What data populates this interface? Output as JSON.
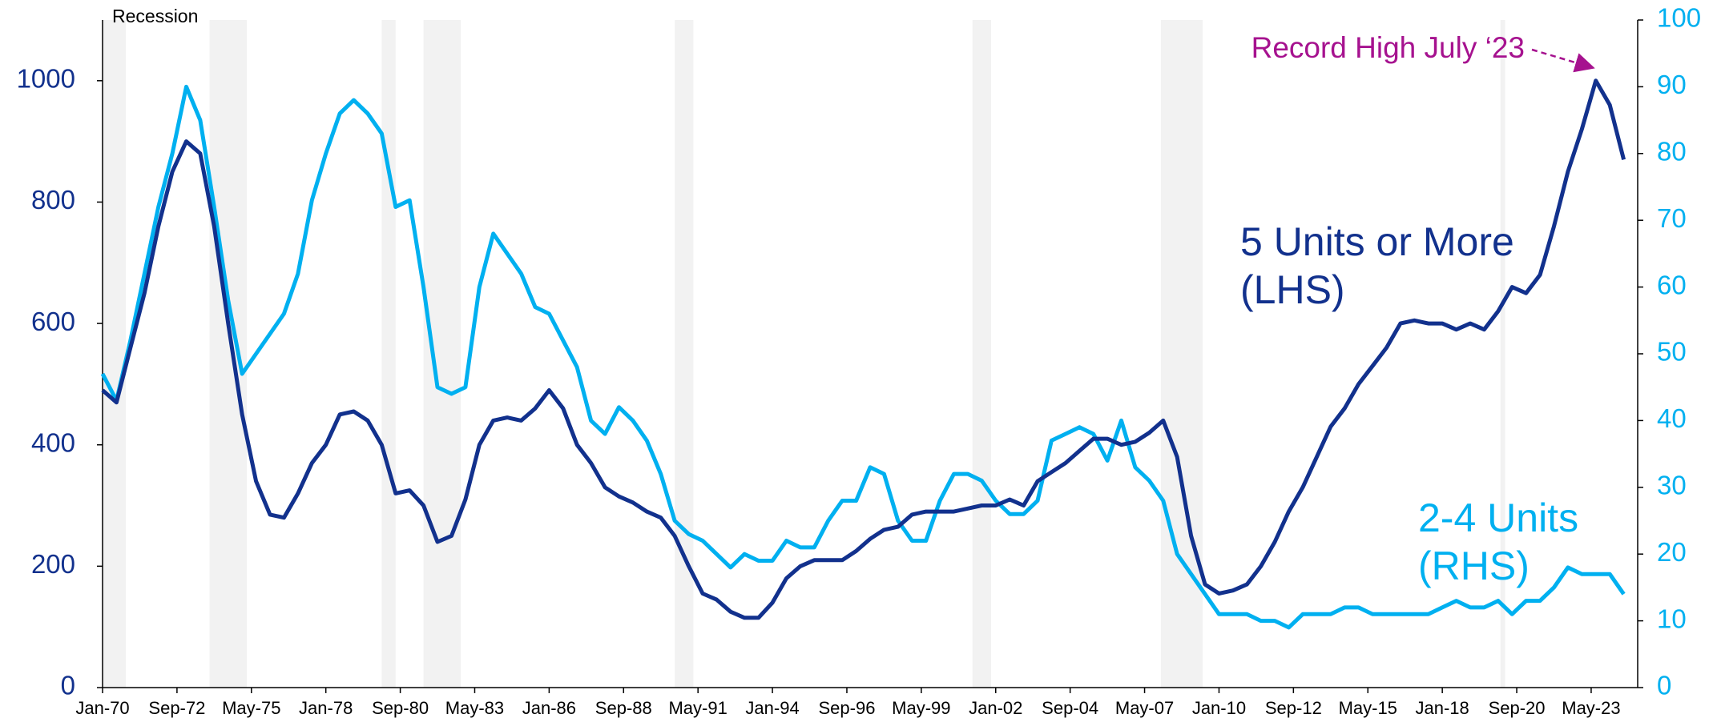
{
  "chart_data": {
    "type": "line",
    "x": [
      "Jan-70",
      "Jul-70",
      "Jan-71",
      "Jul-71",
      "Jan-72",
      "Jul-72",
      "Jan-73",
      "Jul-73",
      "Jan-74",
      "Jul-74",
      "Jan-75",
      "Jul-75",
      "Jan-76",
      "Jul-76",
      "Jan-77",
      "Jul-77",
      "Jan-78",
      "Jul-78",
      "Jan-79",
      "Jul-79",
      "Jan-80",
      "Jul-80",
      "Jan-81",
      "Jul-81",
      "Jan-82",
      "Jul-82",
      "Jan-83",
      "Jul-83",
      "Jan-84",
      "Jul-84",
      "Jan-85",
      "Jul-85",
      "Jan-86",
      "Jul-86",
      "Jan-87",
      "Jul-87",
      "Jan-88",
      "Jul-88",
      "Jan-89",
      "Jul-89",
      "Jan-90",
      "Jul-90",
      "Jan-91",
      "Jul-91",
      "Jan-92",
      "Jul-92",
      "Jan-93",
      "Jul-93",
      "Jan-94",
      "Jul-94",
      "Jan-95",
      "Jul-95",
      "Jan-96",
      "Jul-96",
      "Jan-97",
      "Jul-97",
      "Jan-98",
      "Jul-98",
      "Jan-99",
      "Jul-99",
      "Jan-00",
      "Jul-00",
      "Jan-01",
      "Jul-01",
      "Jan-02",
      "Jul-02",
      "Jan-03",
      "Jul-03",
      "Jan-04",
      "Jul-04",
      "Jan-05",
      "Jul-05",
      "Jan-06",
      "Jul-06",
      "Jan-07",
      "Jul-07",
      "Jan-08",
      "Jul-08",
      "Jan-09",
      "Jul-09",
      "Jan-10",
      "Jul-10",
      "Jan-11",
      "Jul-11",
      "Jan-12",
      "Jul-12",
      "Jan-13",
      "Jul-13",
      "Jan-14",
      "Jul-14",
      "Jan-15",
      "Jul-15",
      "Jan-16",
      "Jul-16",
      "Jan-17",
      "Jul-17",
      "Jan-18",
      "Jul-18",
      "Jan-19",
      "Jul-19",
      "Jan-20",
      "Jul-20",
      "Jan-21",
      "Jul-21",
      "Jan-22",
      "Jul-22",
      "Jan-23",
      "Jul-23",
      "Jan-24",
      "Jul-24"
    ],
    "series": [
      {
        "name": "5 Units or More (LHS)",
        "color": "#12318d",
        "axis": "y",
        "values": [
          490,
          470,
          560,
          650,
          760,
          850,
          900,
          880,
          760,
          600,
          450,
          340,
          285,
          280,
          320,
          370,
          400,
          450,
          455,
          440,
          400,
          320,
          325,
          300,
          240,
          250,
          310,
          400,
          440,
          445,
          440,
          460,
          490,
          460,
          400,
          370,
          330,
          315,
          305,
          290,
          280,
          250,
          200,
          155,
          145,
          125,
          115,
          115,
          140,
          180,
          200,
          210,
          210,
          210,
          225,
          245,
          260,
          265,
          285,
          290,
          290,
          290,
          295,
          300,
          300,
          310,
          300,
          340,
          355,
          370,
          390,
          410,
          410,
          400,
          405,
          420,
          440,
          380,
          250,
          170,
          155,
          160,
          170,
          200,
          240,
          290,
          330,
          380,
          430,
          460,
          500,
          530,
          560,
          600,
          605,
          600,
          600,
          590,
          600,
          590,
          620,
          660,
          650,
          680,
          760,
          850,
          920,
          1000,
          960,
          870
        ]
      },
      {
        "name": "2-4 Units (RHS)",
        "color": "#00b0f0",
        "axis": "y2",
        "values": [
          47,
          43,
          52,
          62,
          72,
          80,
          90,
          85,
          72,
          58,
          47,
          50,
          53,
          56,
          62,
          73,
          80,
          86,
          88,
          86,
          83,
          72,
          73,
          60,
          45,
          44,
          45,
          60,
          68,
          65,
          62,
          57,
          56,
          52,
          48,
          40,
          38,
          42,
          40,
          37,
          32,
          25,
          23,
          22,
          20,
          18,
          20,
          19,
          19,
          22,
          21,
          21,
          25,
          28,
          28,
          33,
          32,
          25,
          22,
          22,
          28,
          32,
          32,
          31,
          28,
          26,
          26,
          28,
          37,
          38,
          39,
          38,
          34,
          40,
          33,
          31,
          28,
          20,
          17,
          14,
          11,
          11,
          11,
          10,
          10,
          9,
          11,
          11,
          11,
          12,
          12,
          11,
          11,
          11,
          11,
          11,
          12,
          13,
          12,
          12,
          13,
          11,
          13,
          13,
          15,
          18,
          17,
          17,
          17,
          14
        ]
      }
    ],
    "recession": {
      "name": "Recession",
      "color": "#f2f2f2",
      "periods": [
        [
          "Dec-69",
          "Nov-70"
        ],
        [
          "Nov-73",
          "Mar-75"
        ],
        [
          "Jan-80",
          "Jul-80"
        ],
        [
          "Jul-81",
          "Nov-82"
        ],
        [
          "Jul-90",
          "Mar-91"
        ],
        [
          "Mar-01",
          "Nov-01"
        ],
        [
          "Dec-07",
          "Jun-09"
        ],
        [
          "Feb-20",
          "Apr-20"
        ]
      ]
    },
    "annotation": "Record High July ‘23",
    "annotation_color": "#a6128f",
    "xlim": [
      "Jan-70",
      "Jan-25"
    ],
    "xticks": [
      "Jan-70",
      "Sep-72",
      "May-75",
      "Jan-78",
      "Sep-80",
      "May-83",
      "Jan-86",
      "Sep-88",
      "May-91",
      "Jan-94",
      "Sep-96",
      "May-99",
      "Jan-02",
      "Sep-04",
      "May-07",
      "Jan-10",
      "Sep-12",
      "May-15",
      "Jan-18",
      "Sep-20",
      "May-23"
    ],
    "ylim": [
      0,
      1100
    ],
    "yticks": [
      0,
      200,
      400,
      600,
      800,
      1000
    ],
    "y2lim": [
      0,
      100
    ],
    "y2ticks": [
      0,
      10,
      20,
      30,
      40,
      50,
      60,
      70,
      80,
      90,
      100
    ],
    "grid": false
  }
}
